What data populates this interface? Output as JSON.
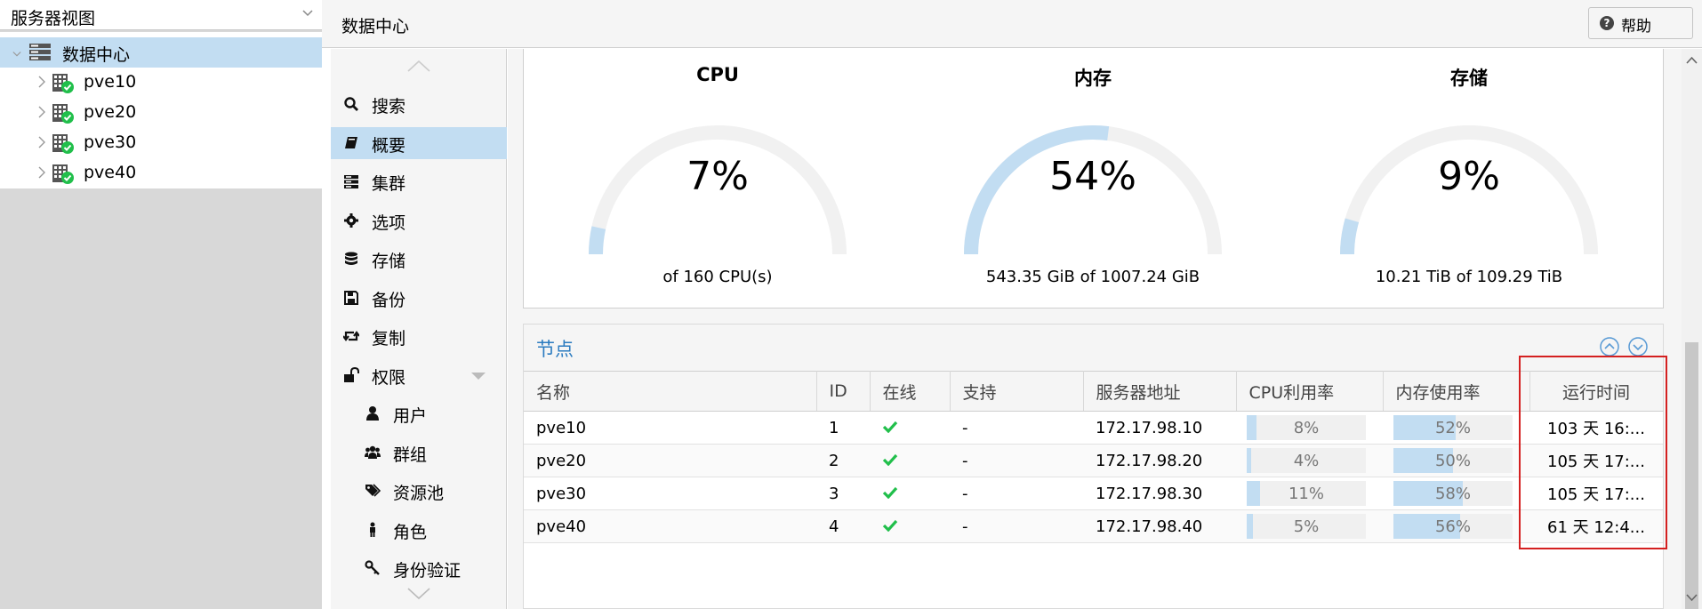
{
  "view_selector": {
    "label": "服务器视图"
  },
  "tree": {
    "root": {
      "label": "数据中心",
      "icon": "server-rack-icon"
    },
    "nodes": [
      {
        "label": "pve10",
        "icon": "node-online-icon"
      },
      {
        "label": "pve20",
        "icon": "node-online-icon"
      },
      {
        "label": "pve30",
        "icon": "node-online-icon"
      },
      {
        "label": "pve40",
        "icon": "node-online-icon"
      }
    ]
  },
  "header": {
    "title": "数据中心",
    "help_label": "帮助"
  },
  "nav": {
    "items": [
      {
        "label": "搜索",
        "icon": "search-icon",
        "selected": false,
        "indent": false
      },
      {
        "label": "概要",
        "icon": "book-icon",
        "selected": true,
        "indent": false
      },
      {
        "label": "集群",
        "icon": "server-icon",
        "selected": false,
        "indent": false
      },
      {
        "label": "选项",
        "icon": "gear-icon",
        "selected": false,
        "indent": false
      },
      {
        "label": "存储",
        "icon": "database-icon",
        "selected": false,
        "indent": false
      },
      {
        "label": "备份",
        "icon": "floppy-icon",
        "selected": false,
        "indent": false
      },
      {
        "label": "复制",
        "icon": "retweet-icon",
        "selected": false,
        "indent": false
      },
      {
        "label": "权限",
        "icon": "unlock-icon",
        "selected": false,
        "indent": false,
        "expandable": true
      },
      {
        "label": "用户",
        "icon": "user-icon",
        "selected": false,
        "indent": true
      },
      {
        "label": "群组",
        "icon": "users-icon",
        "selected": false,
        "indent": true
      },
      {
        "label": "资源池",
        "icon": "tags-icon",
        "selected": false,
        "indent": true
      },
      {
        "label": "角色",
        "icon": "male-icon",
        "selected": false,
        "indent": true
      },
      {
        "label": "身份验证",
        "icon": "key-icon",
        "selected": false,
        "indent": true
      }
    ]
  },
  "gauges": [
    {
      "title": "CPU",
      "value": "7%",
      "fraction": 0.07,
      "subtitle": "of 160 CPU(s)"
    },
    {
      "title": "内存",
      "value": "54%",
      "fraction": 0.54,
      "subtitle": "543.35 GiB of 1007.24 GiB"
    },
    {
      "title": "存储",
      "value": "9%",
      "fraction": 0.09,
      "subtitle": "10.21 TiB of 109.29 TiB"
    }
  ],
  "nodes_panel": {
    "title": "节点",
    "columns": [
      "名称",
      "ID",
      "在线",
      "支持",
      "服务器地址",
      "CPU利用率",
      "内存使用率",
      "运行时间"
    ],
    "rows": [
      {
        "name": "pve10",
        "id": "1",
        "online": true,
        "support": "-",
        "address": "172.17.98.10",
        "cpu": "8%",
        "cpu_frac": 0.08,
        "mem": "52%",
        "mem_frac": 0.52,
        "uptime": "103 天 16:..."
      },
      {
        "name": "pve20",
        "id": "2",
        "online": true,
        "support": "-",
        "address": "172.17.98.20",
        "cpu": "4%",
        "cpu_frac": 0.04,
        "mem": "50%",
        "mem_frac": 0.5,
        "uptime": "105 天 17:..."
      },
      {
        "name": "pve30",
        "id": "3",
        "online": true,
        "support": "-",
        "address": "172.17.98.30",
        "cpu": "11%",
        "cpu_frac": 0.11,
        "mem": "58%",
        "mem_frac": 0.58,
        "uptime": "105 天 17:..."
      },
      {
        "name": "pve40",
        "id": "4",
        "online": true,
        "support": "-",
        "address": "172.17.98.40",
        "cpu": "5%",
        "cpu_frac": 0.05,
        "mem": "56%",
        "mem_frac": 0.56,
        "uptime": "61 天 12:4..."
      }
    ]
  },
  "colors": {
    "accent": "#2b7bc0",
    "selection": "#c2ddf2",
    "online": "#21bf4b",
    "highlight": "#d42020",
    "gauge_track": "#f1f1f1"
  }
}
